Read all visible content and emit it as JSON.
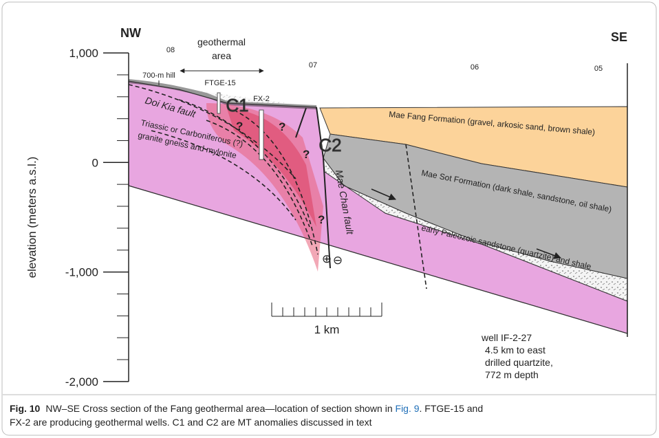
{
  "axis": {
    "label": "elevation (meters a.s.l.)",
    "ticks": [
      "1,000",
      "0",
      "-1,000",
      "-2,000"
    ]
  },
  "ends": {
    "left": "NW",
    "right": "SE"
  },
  "wells": [
    "08",
    "07",
    "06",
    "05"
  ],
  "labels": {
    "geothermal_area": [
      "geothermal",
      "area"
    ],
    "hill": "700-m hill",
    "ftge": "FTGE-15",
    "fx": "FX-2",
    "c1": "C1",
    "c2": "C2",
    "doi_kia": "Doi Kia fault",
    "basement": [
      "Triassic or Carboniferous (?)",
      "granite gneiss and mylonite"
    ],
    "mae_fang": "Mae Fang Formation (gravel, arkosic sand, brown shale)",
    "mae_sot": "Mae Sot Formation (dark shale, sandstone, oil shale)",
    "paleozoic": "early Paleozoic sandstone (quartzite) and shale",
    "mae_chan": "Mae Chan fault",
    "question": "?",
    "plus": "⊕",
    "minus": "⊖",
    "scale": "1 km"
  },
  "well_note": [
    "well IF-2-27",
    " 4.5 km to east",
    "drilled quartzite,",
    "772 m depth"
  ],
  "caption": {
    "label": "Fig. 10",
    "text_1": "NW–SE Cross section of the Fang geothermal area—location of section shown in ",
    "link": "Fig. 9",
    "text_2": ". FTGE-15 and",
    "line_2": "FX-2 are producing geothermal wells. C1 and C2 are MT anomalies discussed in text"
  }
}
